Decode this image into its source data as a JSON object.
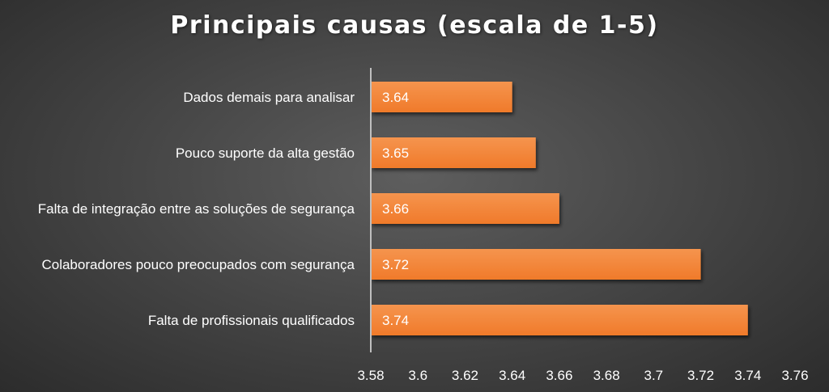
{
  "chart_data": {
    "type": "bar",
    "orientation": "horizontal",
    "title": "Principais causas (escala de 1-5)",
    "categories": [
      "Dados demais para analisar",
      "Pouco suporte da alta gestão",
      "Falta de integração entre as soluções de segurança",
      "Colaboradores pouco preocupados com segurança",
      "Falta de profissionais qualificados"
    ],
    "values": [
      3.64,
      3.65,
      3.66,
      3.72,
      3.74
    ],
    "data_labels": [
      "3.64",
      "3.65",
      "3.66",
      "3.72",
      "3.74"
    ],
    "xticks": [
      "3.58",
      "3.6",
      "3.62",
      "3.64",
      "3.66",
      "3.68",
      "3.7",
      "3.72",
      "3.74",
      "3.76"
    ],
    "xlim": [
      3.58,
      3.76
    ],
    "grid": false,
    "legend": "none",
    "colors": {
      "bar": "#f07a2a",
      "bar_light": "#f5944e",
      "background": "#474747",
      "text": "#ffffff",
      "axis": "#bfbfbf"
    }
  }
}
